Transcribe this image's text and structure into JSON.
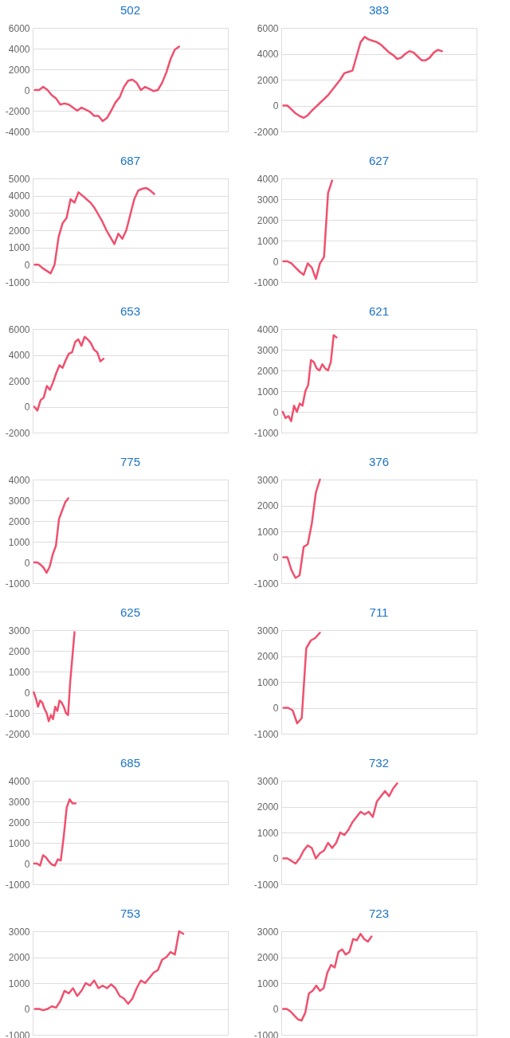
{
  "chart_data": [
    {
      "type": "line",
      "title": "502",
      "color": "#f0506e",
      "grid": "y",
      "ylim": [
        -4000,
        6000
      ],
      "yticks": [
        -4000,
        -2000,
        0,
        2000,
        4000,
        6000
      ],
      "categories": [
        null,
        null,
        null,
        null,
        null,
        null,
        null,
        null,
        null,
        null,
        null,
        null,
        null,
        null,
        null,
        null,
        null,
        null,
        null,
        null,
        null,
        null,
        null,
        null,
        null,
        null,
        null,
        null,
        null,
        null,
        null,
        null,
        null,
        null,
        null,
        null,
        null,
        null,
        null,
        null,
        null,
        null,
        null,
        null,
        null,
        null
      ],
      "values": [
        0,
        0,
        300,
        0,
        -500,
        -800,
        -1400,
        -1300,
        -1400,
        -1700,
        -2000,
        -1700,
        -1900,
        -2100,
        -2500,
        -2500,
        -3000,
        -2700,
        -2000,
        -1200,
        -700,
        300,
        900,
        1000,
        700,
        0,
        300,
        100,
        -100,
        0,
        700,
        1700,
        3000,
        3900,
        4200,
        null,
        null,
        null,
        null,
        null,
        null,
        null,
        null,
        null,
        null,
        null
      ]
    },
    {
      "type": "line",
      "title": "383",
      "color": "#f0506e",
      "grid": "y",
      "ylim": [
        -2000,
        6000
      ],
      "yticks": [
        -2000,
        0,
        2000,
        4000,
        6000
      ],
      "categories": [
        null,
        null,
        null,
        null,
        null,
        null,
        null,
        null,
        null,
        null,
        null,
        null,
        null,
        null,
        null,
        null,
        null,
        null,
        null,
        null,
        null,
        null,
        null,
        null,
        null,
        null,
        null,
        null,
        null,
        null,
        null,
        null,
        null,
        null,
        null,
        null,
        null,
        null,
        null,
        null,
        null,
        null,
        null,
        null,
        null,
        null,
        null,
        null
      ],
      "values": [
        0,
        0,
        -300,
        -600,
        -800,
        -950,
        -750,
        -400,
        -100,
        200,
        500,
        800,
        1200,
        1600,
        2000,
        2500,
        2600,
        2700,
        3800,
        4900,
        5300,
        5100,
        5000,
        4900,
        4700,
        4400,
        4100,
        3900,
        3600,
        3700,
        4000,
        4200,
        4100,
        3800,
        3500,
        3500,
        3700,
        4100,
        4300,
        4200,
        null,
        null,
        null,
        null,
        null,
        null,
        null,
        null
      ]
    },
    {
      "type": "line",
      "title": "687",
      "color": "#f0506e",
      "grid": "y",
      "ylim": [
        -1000,
        5000
      ],
      "yticks": [
        -1000,
        0,
        1000,
        2000,
        3000,
        4000,
        5000
      ],
      "categories": [
        null,
        null,
        null,
        null,
        null,
        null,
        null,
        null,
        null,
        null,
        null,
        null,
        null,
        null,
        null,
        null,
        null,
        null,
        null,
        null,
        null,
        null,
        null,
        null,
        null,
        null,
        null,
        null,
        null,
        null,
        null,
        null,
        null,
        null,
        null,
        null,
        null,
        null,
        null,
        null,
        null,
        null,
        null,
        null,
        null,
        null,
        null,
        null,
        null
      ],
      "values": [
        0,
        0,
        -200,
        -350,
        -500,
        0,
        1600,
        2400,
        2700,
        3800,
        3600,
        4200,
        4000,
        3800,
        3600,
        3300,
        2900,
        2500,
        2000,
        1600,
        1200,
        1800,
        1500,
        2000,
        2900,
        3800,
        4300,
        4400,
        4450,
        4300,
        4100,
        null,
        null,
        null,
        null,
        null,
        null,
        null,
        null,
        null,
        null,
        null,
        null,
        null,
        null,
        null,
        null,
        null,
        null
      ]
    },
    {
      "type": "line",
      "title": "627",
      "color": "#f0506e",
      "grid": "y",
      "ylim": [
        -1000,
        4000
      ],
      "yticks": [
        -1000,
        0,
        1000,
        2000,
        3000,
        4000
      ],
      "categories": [
        null,
        null,
        null,
        null,
        null,
        null,
        null,
        null,
        null,
        null,
        null,
        null,
        null,
        null,
        null,
        null,
        null,
        null,
        null,
        null,
        null,
        null,
        null,
        null,
        null,
        null,
        null,
        null,
        null,
        null,
        null,
        null,
        null,
        null,
        null,
        null,
        null,
        null,
        null,
        null,
        null,
        null,
        null,
        null,
        null,
        null,
        null,
        null
      ],
      "values": [
        0,
        0,
        -100,
        -300,
        -500,
        -650,
        -100,
        -300,
        -850,
        -100,
        200,
        3300,
        3900,
        null,
        null,
        null,
        null,
        null,
        null,
        null,
        null,
        null,
        null,
        null,
        null,
        null,
        null,
        null,
        null,
        null,
        null,
        null,
        null,
        null,
        null,
        null,
        null,
        null,
        null,
        null,
        null,
        null,
        null,
        null,
        null,
        null,
        null,
        null
      ]
    },
    {
      "type": "line",
      "title": "653",
      "color": "#f0506e",
      "grid": "y",
      "ylim": [
        -2000,
        6000
      ],
      "yticks": [
        -2000,
        0,
        2000,
        4000,
        6000
      ],
      "categories": [
        null,
        null,
        null,
        null,
        null,
        null,
        null,
        null,
        null,
        null,
        null,
        null,
        null,
        null,
        null,
        null,
        null,
        null,
        null,
        null,
        null,
        null,
        null,
        null,
        null,
        null,
        null,
        null,
        null,
        null,
        null,
        null,
        null,
        null,
        null,
        null,
        null,
        null,
        null,
        null,
        null,
        null,
        null,
        null,
        null,
        null,
        null,
        null,
        null,
        null,
        null,
        null,
        null,
        null,
        null,
        null,
        null,
        null,
        null,
        null,
        null,
        null
      ],
      "values": [
        0,
        -300,
        500,
        700,
        1600,
        1300,
        1900,
        2600,
        3200,
        3000,
        3600,
        4100,
        4200,
        5000,
        5200,
        4700,
        5400,
        5200,
        4900,
        4400,
        4200,
        3500,
        3700,
        null,
        null,
        null,
        null,
        null,
        null,
        null,
        null,
        null,
        null,
        null,
        null,
        null,
        null,
        null,
        null,
        null,
        null,
        null,
        null,
        null,
        null,
        null,
        null,
        null,
        null,
        null,
        null,
        null,
        null,
        null,
        null,
        null,
        null,
        null,
        null,
        null,
        null,
        null
      ]
    },
    {
      "type": "line",
      "title": "621",
      "color": "#f0506e",
      "grid": "y",
      "ylim": [
        -1000,
        4000
      ],
      "yticks": [
        -1000,
        0,
        1000,
        2000,
        3000,
        4000
      ],
      "categories": [
        null,
        null,
        null,
        null,
        null,
        null,
        null,
        null,
        null,
        null,
        null,
        null,
        null,
        null,
        null,
        null,
        null,
        null,
        null,
        null,
        null,
        null,
        null,
        null,
        null,
        null,
        null,
        null,
        null,
        null,
        null,
        null,
        null,
        null,
        null,
        null,
        null,
        null,
        null,
        null,
        null,
        null,
        null,
        null,
        null,
        null,
        null,
        null,
        null,
        null,
        null,
        null,
        null,
        null,
        null,
        null,
        null,
        null,
        null,
        null,
        null,
        null,
        null,
        null,
        null,
        null,
        null,
        null,
        null
      ],
      "values": [
        0,
        -300,
        -200,
        -450,
        300,
        0,
        400,
        300,
        1000,
        1300,
        2500,
        2400,
        2100,
        2000,
        2300,
        2100,
        2000,
        2400,
        3700,
        3600,
        null,
        null,
        null,
        null,
        null,
        null,
        null,
        null,
        null,
        null,
        null,
        null,
        null,
        null,
        null,
        null,
        null,
        null,
        null,
        null,
        null,
        null,
        null,
        null,
        null,
        null,
        null,
        null,
        null,
        null,
        null,
        null,
        null,
        null,
        null,
        null,
        null,
        null,
        null,
        null,
        null,
        null,
        null,
        null,
        null,
        null,
        null,
        null,
        null
      ]
    },
    {
      "type": "line",
      "title": "775",
      "color": "#f0506e",
      "grid": "y",
      "ylim": [
        -1000,
        4000
      ],
      "yticks": [
        -1000,
        0,
        1000,
        2000,
        3000,
        4000
      ],
      "categories": [
        null,
        null,
        null,
        null,
        null,
        null,
        null,
        null,
        null,
        null,
        null,
        null,
        null,
        null,
        null,
        null,
        null,
        null,
        null,
        null,
        null,
        null,
        null,
        null,
        null,
        null,
        null,
        null,
        null,
        null,
        null,
        null,
        null,
        null,
        null,
        null,
        null,
        null,
        null,
        null,
        null,
        null,
        null,
        null,
        null,
        null,
        null,
        null,
        null,
        null,
        null,
        null,
        null,
        null,
        null,
        null,
        null,
        null,
        null,
        null,
        null,
        null,
        null
      ],
      "values": [
        0,
        0,
        -100,
        -250,
        -500,
        -200,
        400,
        800,
        2100,
        2500,
        2900,
        3100,
        null,
        null,
        null,
        null,
        null,
        null,
        null,
        null,
        null,
        null,
        null,
        null,
        null,
        null,
        null,
        null,
        null,
        null,
        null,
        null,
        null,
        null,
        null,
        null,
        null,
        null,
        null,
        null,
        null,
        null,
        null,
        null,
        null,
        null,
        null,
        null,
        null,
        null,
        null,
        null,
        null,
        null,
        null,
        null,
        null,
        null,
        null,
        null,
        null,
        null,
        null
      ]
    },
    {
      "type": "line",
      "title": "376",
      "color": "#f0506e",
      "grid": "y",
      "ylim": [
        -1000,
        3000
      ],
      "yticks": [
        -1000,
        0,
        1000,
        2000,
        3000
      ],
      "categories": [
        null,
        null,
        null,
        null,
        null,
        null,
        null,
        null,
        null,
        null,
        null,
        null,
        null,
        null,
        null,
        null,
        null,
        null,
        null,
        null,
        null,
        null,
        null,
        null,
        null,
        null,
        null,
        null,
        null,
        null,
        null,
        null,
        null,
        null,
        null,
        null,
        null,
        null,
        null,
        null,
        null,
        null,
        null,
        null,
        null,
        null,
        null,
        null
      ],
      "values": [
        0,
        0,
        -500,
        -800,
        -700,
        400,
        500,
        1300,
        2500,
        3000,
        null,
        null,
        null,
        null,
        null,
        null,
        null,
        null,
        null,
        null,
        null,
        null,
        null,
        null,
        null,
        null,
        null,
        null,
        null,
        null,
        null,
        null,
        null,
        null,
        null,
        null,
        null,
        null,
        null,
        null,
        null,
        null,
        null,
        null,
        null,
        null,
        null,
        null
      ]
    },
    {
      "type": "line",
      "title": "625",
      "color": "#f0506e",
      "grid": "y",
      "ylim": [
        -2000,
        3000
      ],
      "yticks": [
        -2000,
        -1000,
        0,
        1000,
        2000,
        3000
      ],
      "categories": [
        null,
        null,
        null,
        null,
        null,
        null,
        null,
        null,
        null,
        null,
        null,
        null,
        null,
        null,
        null,
        null,
        null,
        null,
        null,
        null,
        null,
        null,
        null,
        null,
        null,
        null,
        null,
        null,
        null,
        null,
        null,
        null,
        null,
        null,
        null,
        null,
        null,
        null,
        null,
        null,
        null,
        null,
        null,
        null,
        null,
        null,
        null,
        null,
        null,
        null,
        null,
        null,
        null,
        null,
        null,
        null,
        null,
        null,
        null,
        null,
        null,
        null,
        null,
        null,
        null,
        null,
        null,
        null,
        null,
        null,
        null,
        null,
        null,
        null,
        null,
        null,
        null,
        null,
        null,
        null,
        null,
        null,
        null,
        null,
        null,
        null,
        null,
        null,
        null,
        null,
        null
      ],
      "values": [
        0,
        -300,
        -700,
        -400,
        -500,
        -800,
        -1000,
        -1400,
        -1100,
        -1300,
        -700,
        -900,
        -400,
        -500,
        -700,
        -1000,
        -1100,
        500,
        1700,
        2900,
        null,
        null,
        null,
        null,
        null,
        null,
        null,
        null,
        null,
        null,
        null,
        null,
        null,
        null,
        null,
        null,
        null,
        null,
        null,
        null,
        null,
        null,
        null,
        null,
        null,
        null,
        null,
        null,
        null,
        null,
        null,
        null,
        null,
        null,
        null,
        null,
        null,
        null,
        null,
        null,
        null,
        null,
        null,
        null,
        null,
        null,
        null,
        null,
        null,
        null,
        null,
        null,
        null,
        null,
        null,
        null,
        null,
        null,
        null,
        null,
        null,
        null,
        null,
        null,
        null,
        null,
        null,
        null,
        null,
        null,
        null
      ]
    },
    {
      "type": "line",
      "title": "711",
      "color": "#f0506e",
      "grid": "y",
      "ylim": [
        -1000,
        3000
      ],
      "yticks": [
        -1000,
        0,
        1000,
        2000,
        3000
      ],
      "categories": [
        null,
        null,
        null,
        null,
        null,
        null,
        null,
        null,
        null,
        null,
        null,
        null,
        null,
        null,
        null,
        null,
        null,
        null,
        null,
        null,
        null,
        null,
        null,
        null,
        null,
        null,
        null,
        null,
        null,
        null,
        null,
        null,
        null,
        null,
        null,
        null,
        null,
        null,
        null,
        null,
        null,
        null,
        null
      ],
      "values": [
        0,
        0,
        -100,
        -600,
        -400,
        2300,
        2600,
        2700,
        2900,
        null,
        null,
        null,
        null,
        null,
        null,
        null,
        null,
        null,
        null,
        null,
        null,
        null,
        null,
        null,
        null,
        null,
        null,
        null,
        null,
        null,
        null,
        null,
        null,
        null,
        null,
        null,
        null,
        null,
        null,
        null,
        null,
        null,
        null
      ]
    },
    {
      "type": "line",
      "title": "685",
      "color": "#f0506e",
      "grid": "y",
      "ylim": [
        -1000,
        4000
      ],
      "yticks": [
        -1000,
        0,
        1000,
        2000,
        3000,
        4000
      ],
      "categories": [
        null,
        null,
        null,
        null,
        null,
        null,
        null,
        null,
        null,
        null,
        null,
        null,
        null,
        null,
        null,
        null,
        null,
        null,
        null,
        null,
        null,
        null,
        null,
        null,
        null,
        null,
        null,
        null,
        null,
        null,
        null,
        null,
        null,
        null,
        null,
        null,
        null,
        null,
        null,
        null,
        null,
        null,
        null,
        null,
        null,
        null,
        null,
        null,
        null,
        null,
        null,
        null,
        null,
        null,
        null,
        null,
        null,
        null,
        null,
        null,
        null,
        null,
        null,
        null,
        null,
        null
      ],
      "values": [
        0,
        0,
        -100,
        400,
        300,
        100,
        -50,
        -100,
        200,
        150,
        1300,
        2700,
        3100,
        2900,
        2900,
        null,
        null,
        null,
        null,
        null,
        null,
        null,
        null,
        null,
        null,
        null,
        null,
        null,
        null,
        null,
        null,
        null,
        null,
        null,
        null,
        null,
        null,
        null,
        null,
        null,
        null,
        null,
        null,
        null,
        null,
        null,
        null,
        null,
        null,
        null,
        null,
        null,
        null,
        null,
        null,
        null,
        null,
        null,
        null,
        null,
        null,
        null,
        null,
        null,
        null,
        null
      ]
    },
    {
      "type": "line",
      "title": "732",
      "color": "#f0506e",
      "grid": "y",
      "ylim": [
        -1000,
        3000
      ],
      "yticks": [
        -1000,
        0,
        1000,
        2000,
        3000
      ],
      "categories": [
        null,
        null,
        null,
        null,
        null,
        null,
        null,
        null,
        null,
        null,
        null,
        null,
        null,
        null,
        null,
        null,
        null,
        null,
        null,
        null,
        null,
        null,
        null,
        null,
        null,
        null,
        null,
        null,
        null,
        null,
        null,
        null,
        null,
        null,
        null,
        null,
        null,
        null,
        null,
        null,
        null,
        null,
        null,
        null,
        null,
        null,
        null,
        null
      ],
      "values": [
        0,
        0,
        -100,
        -200,
        0,
        300,
        500,
        400,
        0,
        200,
        300,
        600,
        400,
        600,
        1000,
        900,
        1100,
        1400,
        1600,
        1800,
        1700,
        1800,
        1600,
        2200,
        2400,
        2600,
        2400,
        2700,
        2900,
        null,
        null,
        null,
        null,
        null,
        null,
        null,
        null,
        null,
        null,
        null,
        null,
        null,
        null,
        null,
        null,
        null,
        null,
        null
      ]
    },
    {
      "type": "line",
      "title": "753",
      "color": "#f0506e",
      "grid": "y",
      "ylim": [
        -1000,
        3000
      ],
      "yticks": [
        -1000,
        0,
        1000,
        2000,
        3000
      ],
      "categories": [
        null,
        null,
        null,
        null,
        null,
        null,
        null,
        null,
        null,
        null,
        null,
        null,
        null,
        null,
        null,
        null,
        null,
        null,
        null,
        null,
        null,
        null,
        null,
        null,
        null,
        null,
        null,
        null,
        null,
        null,
        null,
        null,
        null,
        null,
        null,
        null,
        null,
        null,
        null,
        null,
        null,
        null,
        null,
        null,
        null,
        null
      ],
      "values": [
        0,
        0,
        -50,
        0,
        100,
        50,
        300,
        700,
        600,
        800,
        500,
        700,
        1000,
        900,
        1100,
        800,
        900,
        800,
        950,
        800,
        500,
        400,
        200,
        400,
        800,
        1100,
        1000,
        1200,
        1400,
        1500,
        1900,
        2000,
        2200,
        2100,
        3000,
        2900,
        null,
        null,
        null,
        null,
        null,
        null,
        null,
        null,
        null,
        null
      ]
    },
    {
      "type": "line",
      "title": "723",
      "color": "#f0506e",
      "grid": "y",
      "ylim": [
        -1000,
        3000
      ],
      "yticks": [
        -1000,
        0,
        1000,
        2000,
        3000
      ],
      "categories": [
        null,
        null,
        null,
        null,
        null,
        null,
        null,
        null,
        null,
        null,
        null,
        null,
        null,
        null,
        null,
        null,
        null,
        null,
        null,
        null,
        null,
        null,
        null,
        null,
        null,
        null,
        null,
        null,
        null,
        null,
        null,
        null,
        null,
        null,
        null,
        null,
        null,
        null,
        null,
        null,
        null,
        null,
        null,
        null,
        null,
        null,
        null,
        null,
        null,
        null,
        null,
        null,
        null
      ],
      "values": [
        0,
        0,
        -100,
        -250,
        -400,
        -450,
        -150,
        600,
        700,
        900,
        700,
        800,
        1400,
        1700,
        1600,
        2200,
        2300,
        2100,
        2200,
        2700,
        2650,
        2900,
        2700,
        2600,
        2800,
        null,
        null,
        null,
        null,
        null,
        null,
        null,
        null,
        null,
        null,
        null,
        null,
        null,
        null,
        null,
        null,
        null,
        null,
        null,
        null,
        null,
        null,
        null,
        null,
        null,
        null,
        null,
        null
      ]
    }
  ]
}
